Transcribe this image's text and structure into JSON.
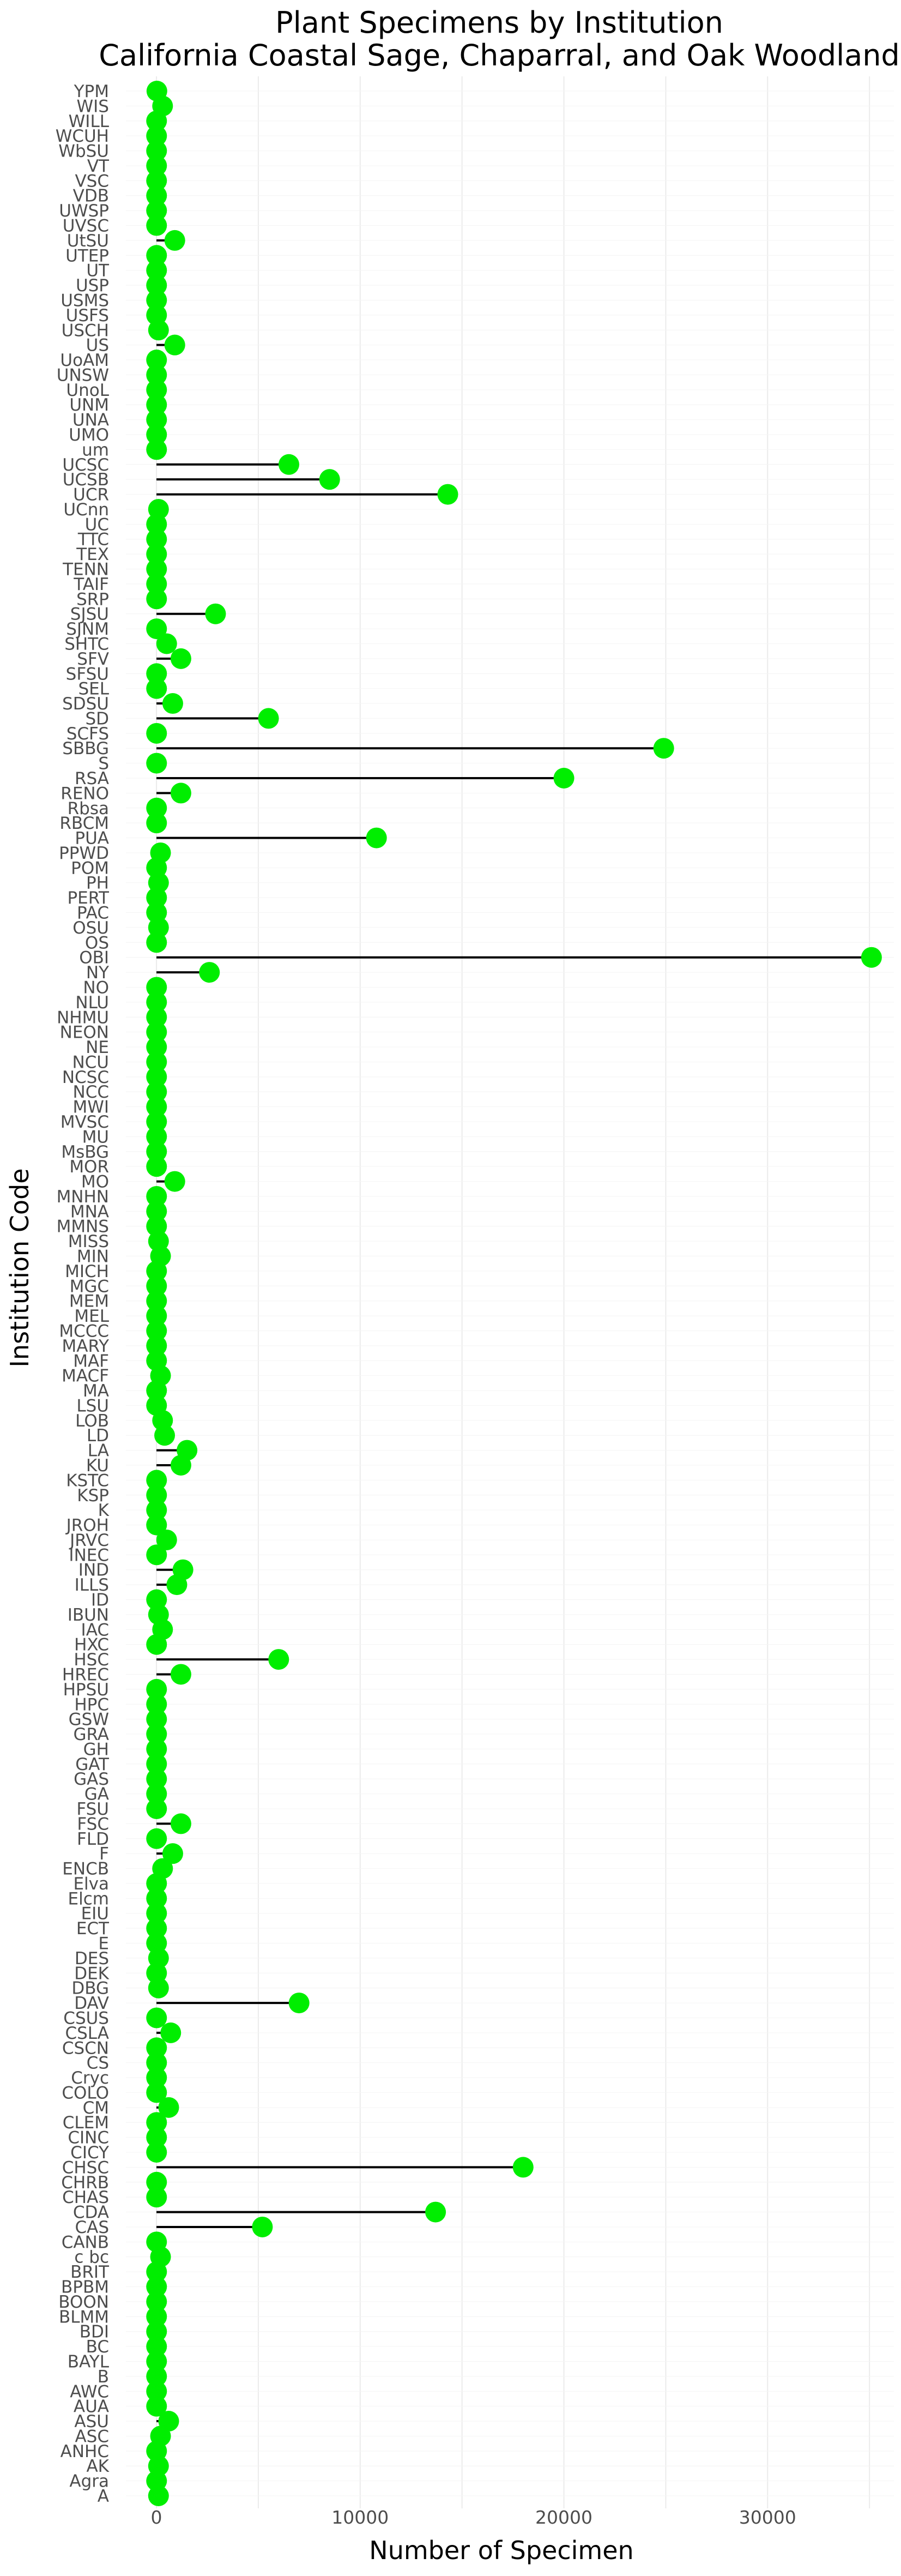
{
  "chart_data": {
    "type": "lollipop",
    "title": "Plant Specimens by Institution",
    "subtitle": "California Coastal Sage, Chaparral, and Oak Woodland",
    "xlabel": "Number of Specimen",
    "ylabel": "Institution Code",
    "xlim": [
      -1500,
      36200
    ],
    "xticks": [
      0,
      10000,
      20000,
      30000
    ],
    "grid": true,
    "colors": {
      "point": "#00ee00",
      "stem": "#000000"
    },
    "points": [
      {
        "code": "YPM",
        "value": 20
      },
      {
        "code": "WIS",
        "value": 300
      },
      {
        "code": "WILL",
        "value": 5
      },
      {
        "code": "WCUH",
        "value": 5
      },
      {
        "code": "WbSU",
        "value": 5
      },
      {
        "code": "VT",
        "value": 5
      },
      {
        "code": "VSC",
        "value": 5
      },
      {
        "code": "VDB",
        "value": 5
      },
      {
        "code": "UWSP",
        "value": 5
      },
      {
        "code": "UVSC",
        "value": 5
      },
      {
        "code": "UtSU",
        "value": 900
      },
      {
        "code": "UTEP",
        "value": 5
      },
      {
        "code": "UT",
        "value": 5
      },
      {
        "code": "USP",
        "value": 5
      },
      {
        "code": "USMS",
        "value": 5
      },
      {
        "code": "USFS",
        "value": 5
      },
      {
        "code": "USCH",
        "value": 100
      },
      {
        "code": "US",
        "value": 900
      },
      {
        "code": "UoAM",
        "value": 5
      },
      {
        "code": "UNSW",
        "value": 5
      },
      {
        "code": "UnoL",
        "value": 5
      },
      {
        "code": "UNM",
        "value": 5
      },
      {
        "code": "UNA",
        "value": 5
      },
      {
        "code": "UMO",
        "value": 5
      },
      {
        "code": "um",
        "value": 5
      },
      {
        "code": "UCSC",
        "value": 6500
      },
      {
        "code": "UCSB",
        "value": 8500
      },
      {
        "code": "UCR",
        "value": 14300
      },
      {
        "code": "UCnn",
        "value": 100
      },
      {
        "code": "UC",
        "value": 5
      },
      {
        "code": "TTC",
        "value": 5
      },
      {
        "code": "TEX",
        "value": 5
      },
      {
        "code": "TENN",
        "value": 5
      },
      {
        "code": "TAIF",
        "value": 5
      },
      {
        "code": "SRP",
        "value": 5
      },
      {
        "code": "SJSU",
        "value": 2900
      },
      {
        "code": "SJNM",
        "value": 5
      },
      {
        "code": "SHTC",
        "value": 500
      },
      {
        "code": "SFV",
        "value": 1200
      },
      {
        "code": "SFSU",
        "value": 5
      },
      {
        "code": "SEL",
        "value": 5
      },
      {
        "code": "SDSU",
        "value": 800
      },
      {
        "code": "SD",
        "value": 5500
      },
      {
        "code": "SCFS",
        "value": 5
      },
      {
        "code": "SBBG",
        "value": 24900
      },
      {
        "code": "S",
        "value": 5
      },
      {
        "code": "RSA",
        "value": 20000
      },
      {
        "code": "RENO",
        "value": 1200
      },
      {
        "code": "Rbsa",
        "value": 5
      },
      {
        "code": "RBCM",
        "value": 5
      },
      {
        "code": "PUA",
        "value": 10800
      },
      {
        "code": "PPWD",
        "value": 200
      },
      {
        "code": "POM",
        "value": 5
      },
      {
        "code": "PH",
        "value": 100
      },
      {
        "code": "PERT",
        "value": 5
      },
      {
        "code": "PAC",
        "value": 5
      },
      {
        "code": "OSU",
        "value": 100
      },
      {
        "code": "OS",
        "value": 5
      },
      {
        "code": "OBI",
        "value": 35100
      },
      {
        "code": "NY",
        "value": 2600
      },
      {
        "code": "NO",
        "value": 5
      },
      {
        "code": "NLU",
        "value": 5
      },
      {
        "code": "NHMU",
        "value": 5
      },
      {
        "code": "NEON",
        "value": 5
      },
      {
        "code": "NE",
        "value": 5
      },
      {
        "code": "NCU",
        "value": 5
      },
      {
        "code": "NCSC",
        "value": 5
      },
      {
        "code": "NCC",
        "value": 5
      },
      {
        "code": "MWI",
        "value": 5
      },
      {
        "code": "MVSC",
        "value": 5
      },
      {
        "code": "MU",
        "value": 5
      },
      {
        "code": "MsBG",
        "value": 5
      },
      {
        "code": "MOR",
        "value": 5
      },
      {
        "code": "MO",
        "value": 900
      },
      {
        "code": "MNHN",
        "value": 5
      },
      {
        "code": "MNA",
        "value": 5
      },
      {
        "code": "MMNS",
        "value": 5
      },
      {
        "code": "MISS",
        "value": 100
      },
      {
        "code": "MIN",
        "value": 200
      },
      {
        "code": "MICH",
        "value": 5
      },
      {
        "code": "MGC",
        "value": 5
      },
      {
        "code": "MEM",
        "value": 5
      },
      {
        "code": "MEL",
        "value": 5
      },
      {
        "code": "MCCC",
        "value": 5
      },
      {
        "code": "MARY",
        "value": 5
      },
      {
        "code": "MAF",
        "value": 5
      },
      {
        "code": "MACF",
        "value": 200
      },
      {
        "code": "MA",
        "value": 5
      },
      {
        "code": "LSU",
        "value": 5
      },
      {
        "code": "LOB",
        "value": 300
      },
      {
        "code": "LD",
        "value": 400
      },
      {
        "code": "LA",
        "value": 1500
      },
      {
        "code": "KU",
        "value": 1200
      },
      {
        "code": "KSTC",
        "value": 5
      },
      {
        "code": "KSP",
        "value": 5
      },
      {
        "code": "K",
        "value": 5
      },
      {
        "code": "JROH",
        "value": 5
      },
      {
        "code": "JRVC",
        "value": 500
      },
      {
        "code": "INEC",
        "value": 5
      },
      {
        "code": "IND",
        "value": 1300
      },
      {
        "code": "ILLS",
        "value": 1000
      },
      {
        "code": "ID",
        "value": 5
      },
      {
        "code": "IBUN",
        "value": 100
      },
      {
        "code": "IAC",
        "value": 300
      },
      {
        "code": "HXC",
        "value": 5
      },
      {
        "code": "HSC",
        "value": 6000
      },
      {
        "code": "HREC",
        "value": 1200
      },
      {
        "code": "HPSU",
        "value": 5
      },
      {
        "code": "HPC",
        "value": 5
      },
      {
        "code": "GSW",
        "value": 5
      },
      {
        "code": "GRA",
        "value": 5
      },
      {
        "code": "GH",
        "value": 5
      },
      {
        "code": "GAT",
        "value": 5
      },
      {
        "code": "GAS",
        "value": 5
      },
      {
        "code": "GA",
        "value": 5
      },
      {
        "code": "FSU",
        "value": 5
      },
      {
        "code": "FSC",
        "value": 1200
      },
      {
        "code": "FLD",
        "value": 5
      },
      {
        "code": "F",
        "value": 800
      },
      {
        "code": "ENCB",
        "value": 300
      },
      {
        "code": "Elva",
        "value": 5
      },
      {
        "code": "Elcm",
        "value": 5
      },
      {
        "code": "EIU",
        "value": 5
      },
      {
        "code": "ECT",
        "value": 5
      },
      {
        "code": "E",
        "value": 5
      },
      {
        "code": "DES",
        "value": 100
      },
      {
        "code": "DEK",
        "value": 5
      },
      {
        "code": "DBG",
        "value": 100
      },
      {
        "code": "DAV",
        "value": 7000
      },
      {
        "code": "CSUS",
        "value": 5
      },
      {
        "code": "CSLA",
        "value": 700
      },
      {
        "code": "CSCN",
        "value": 5
      },
      {
        "code": "CS",
        "value": 5
      },
      {
        "code": "Cryc",
        "value": 5
      },
      {
        "code": "COLO",
        "value": 5
      },
      {
        "code": "CM",
        "value": 600
      },
      {
        "code": "CLEM",
        "value": 5
      },
      {
        "code": "CINC",
        "value": 5
      },
      {
        "code": "CICY",
        "value": 5
      },
      {
        "code": "CHSC",
        "value": 18000
      },
      {
        "code": "CHRB",
        "value": 5
      },
      {
        "code": "CHAS",
        "value": 5
      },
      {
        "code": "CDA",
        "value": 13700
      },
      {
        "code": "CAS",
        "value": 5200
      },
      {
        "code": "CANB",
        "value": 5
      },
      {
        "code": "c bc",
        "value": 200
      },
      {
        "code": "BRIT",
        "value": 5
      },
      {
        "code": "BPBM",
        "value": 5
      },
      {
        "code": "BOON",
        "value": 5
      },
      {
        "code": "BLMM",
        "value": 5
      },
      {
        "code": "BDI",
        "value": 5
      },
      {
        "code": "BC",
        "value": 5
      },
      {
        "code": "BAYL",
        "value": 5
      },
      {
        "code": "B",
        "value": 5
      },
      {
        "code": "AWC",
        "value": 5
      },
      {
        "code": "AUA",
        "value": 5
      },
      {
        "code": "ASU",
        "value": 600
      },
      {
        "code": "ASC",
        "value": 200
      },
      {
        "code": "ANHC",
        "value": 5
      },
      {
        "code": "AK",
        "value": 100
      },
      {
        "code": "Agra",
        "value": 5
      },
      {
        "code": "A",
        "value": 100
      }
    ]
  }
}
